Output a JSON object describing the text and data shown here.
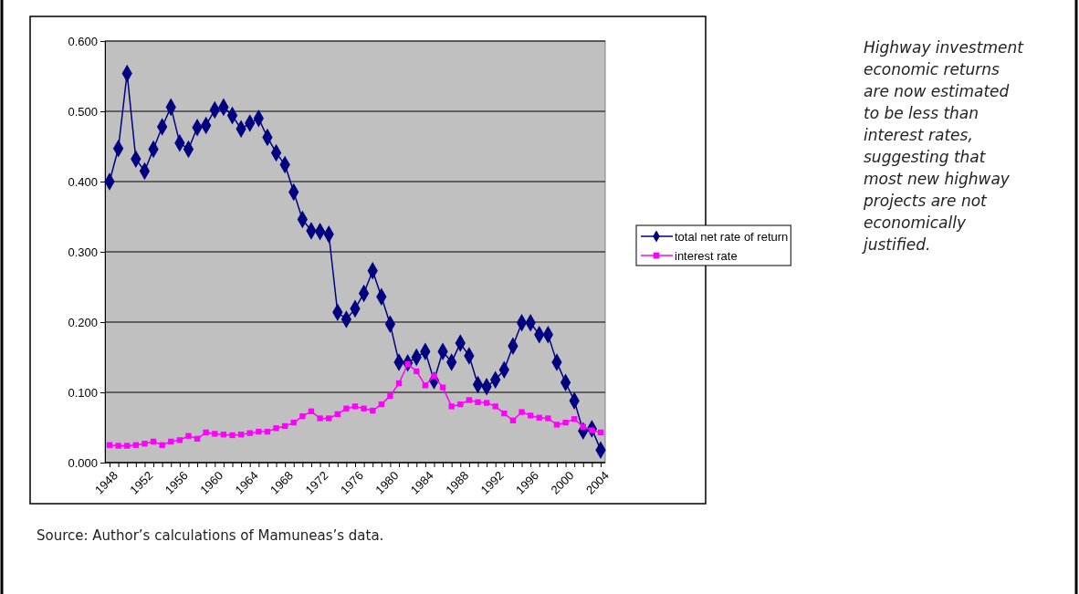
{
  "chart_data": {
    "type": "line",
    "categories": [
      "1948",
      null,
      null,
      null,
      "1952",
      null,
      null,
      null,
      "1956",
      null,
      null,
      null,
      "1960",
      null,
      null,
      null,
      "1964",
      null,
      null,
      null,
      "1968",
      null,
      null,
      null,
      "1972",
      null,
      null,
      null,
      "1976",
      null,
      null,
      null,
      "1980",
      null,
      null,
      null,
      "1984",
      null,
      null,
      null,
      "1988",
      null,
      null,
      null,
      "1992",
      null,
      null,
      null,
      "1996",
      null,
      null,
      null,
      "2000",
      null,
      null,
      null,
      "2004"
    ],
    "series": [
      {
        "name": "total net rate of return",
        "color": "#000080",
        "marker": "diamond",
        "values": [
          0.4,
          0.447,
          0.554,
          0.432,
          0.415,
          0.446,
          0.478,
          0.506,
          0.455,
          0.446,
          0.477,
          0.48,
          0.502,
          0.506,
          0.494,
          0.475,
          0.483,
          0.49,
          0.463,
          0.441,
          0.424,
          0.385,
          0.346,
          0.33,
          0.329,
          0.325,
          0.214,
          0.204,
          0.219,
          0.241,
          0.273,
          0.236,
          0.197,
          0.143,
          0.142,
          0.15,
          0.158,
          0.117,
          0.158,
          0.143,
          0.17,
          0.152,
          0.111,
          0.108,
          0.118,
          0.132,
          0.166,
          0.199,
          0.199,
          0.182,
          0.182,
          0.143,
          0.114,
          0.088,
          0.045,
          0.048,
          0.018
        ]
      },
      {
        "name": "interest rate",
        "color": "#ff00ff",
        "marker": "square",
        "values": [
          0.025,
          0.024,
          0.024,
          0.025,
          0.027,
          0.03,
          0.025,
          0.03,
          0.032,
          0.038,
          0.034,
          0.043,
          0.041,
          0.04,
          0.039,
          0.04,
          0.042,
          0.044,
          0.044,
          0.049,
          0.052,
          0.057,
          0.066,
          0.073,
          0.063,
          0.063,
          0.069,
          0.077,
          0.08,
          0.077,
          0.074,
          0.083,
          0.095,
          0.113,
          0.14,
          0.13,
          0.11,
          0.123,
          0.107,
          0.08,
          0.083,
          0.089,
          0.086,
          0.085,
          0.08,
          0.07,
          0.06,
          0.072,
          0.067,
          0.064,
          0.063,
          0.054,
          0.057,
          0.062,
          0.051,
          0.046,
          0.043
        ]
      }
    ],
    "ylim": [
      0,
      0.6
    ],
    "yticks": [
      {
        "value": 0,
        "label": "0.000"
      },
      {
        "value": 0.1,
        "label": "0.100"
      },
      {
        "value": 0.2,
        "label": "0.200"
      },
      {
        "value": 0.3,
        "label": "0.300"
      },
      {
        "value": 0.4,
        "label": "0.400"
      },
      {
        "value": 0.5,
        "label": "0.500"
      },
      {
        "value": 0.6,
        "label": "0.600"
      }
    ],
    "grid": "y",
    "legend": "right",
    "line_style": "solid",
    "annotations": [
      "Highway investment economic returns are now estimated to be less than interest rates, suggesting that most new highway projects are not economically justified.",
      "Source:  Author’s calculations of Mamuneas’s data."
    ]
  }
}
